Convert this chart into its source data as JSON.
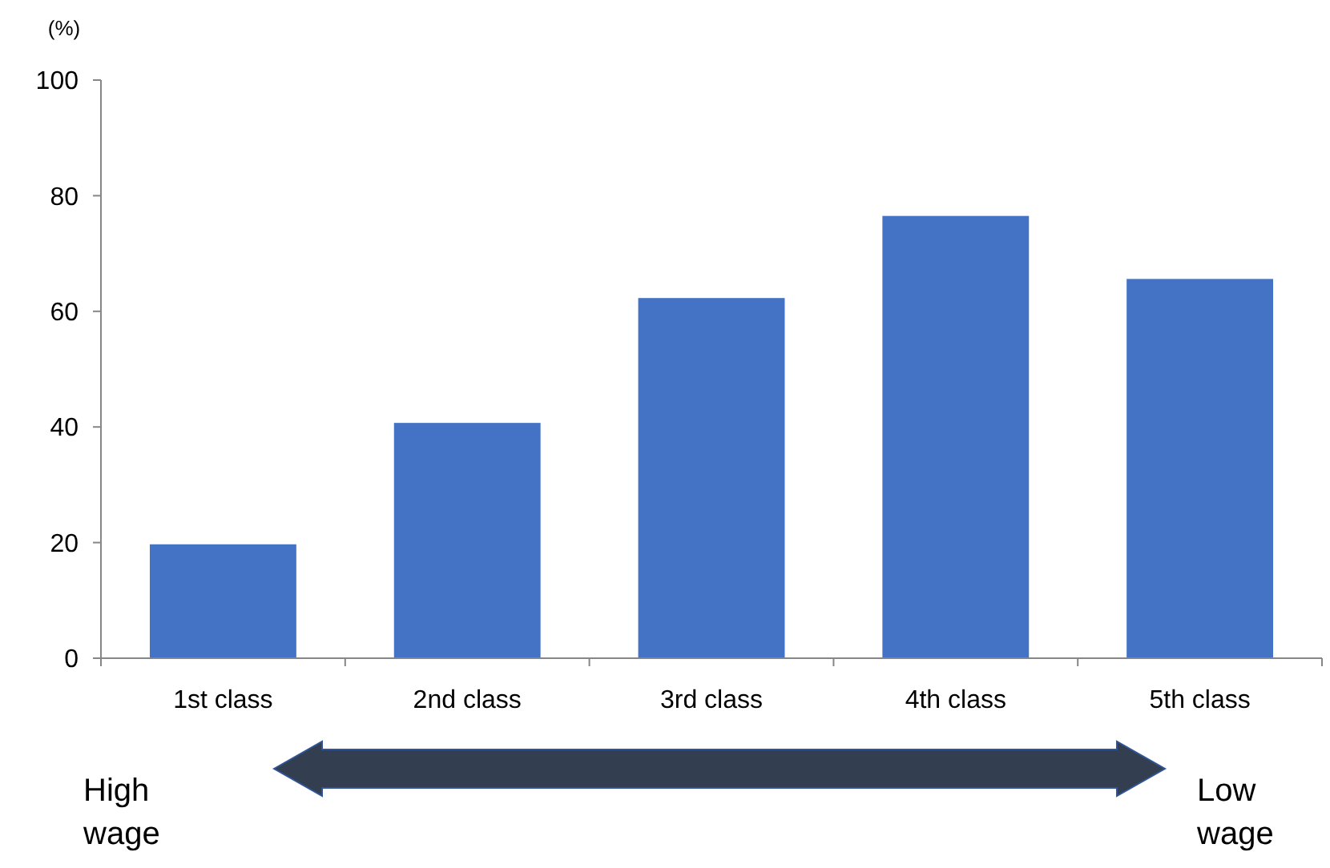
{
  "chart_data": {
    "type": "bar",
    "ylabel": "(%)",
    "categories": [
      "1st class",
      "2nd class",
      "3rd class",
      "4th class",
      "5th class"
    ],
    "values": [
      19.7,
      40.7,
      62.3,
      76.5,
      65.6
    ],
    "color": "#4472c4",
    "ylim": [
      0,
      100
    ],
    "yticks": [
      0,
      20,
      40,
      60,
      80,
      100
    ],
    "grid": false,
    "annotations": [
      "High\nwage",
      "Low\nwage"
    ]
  }
}
